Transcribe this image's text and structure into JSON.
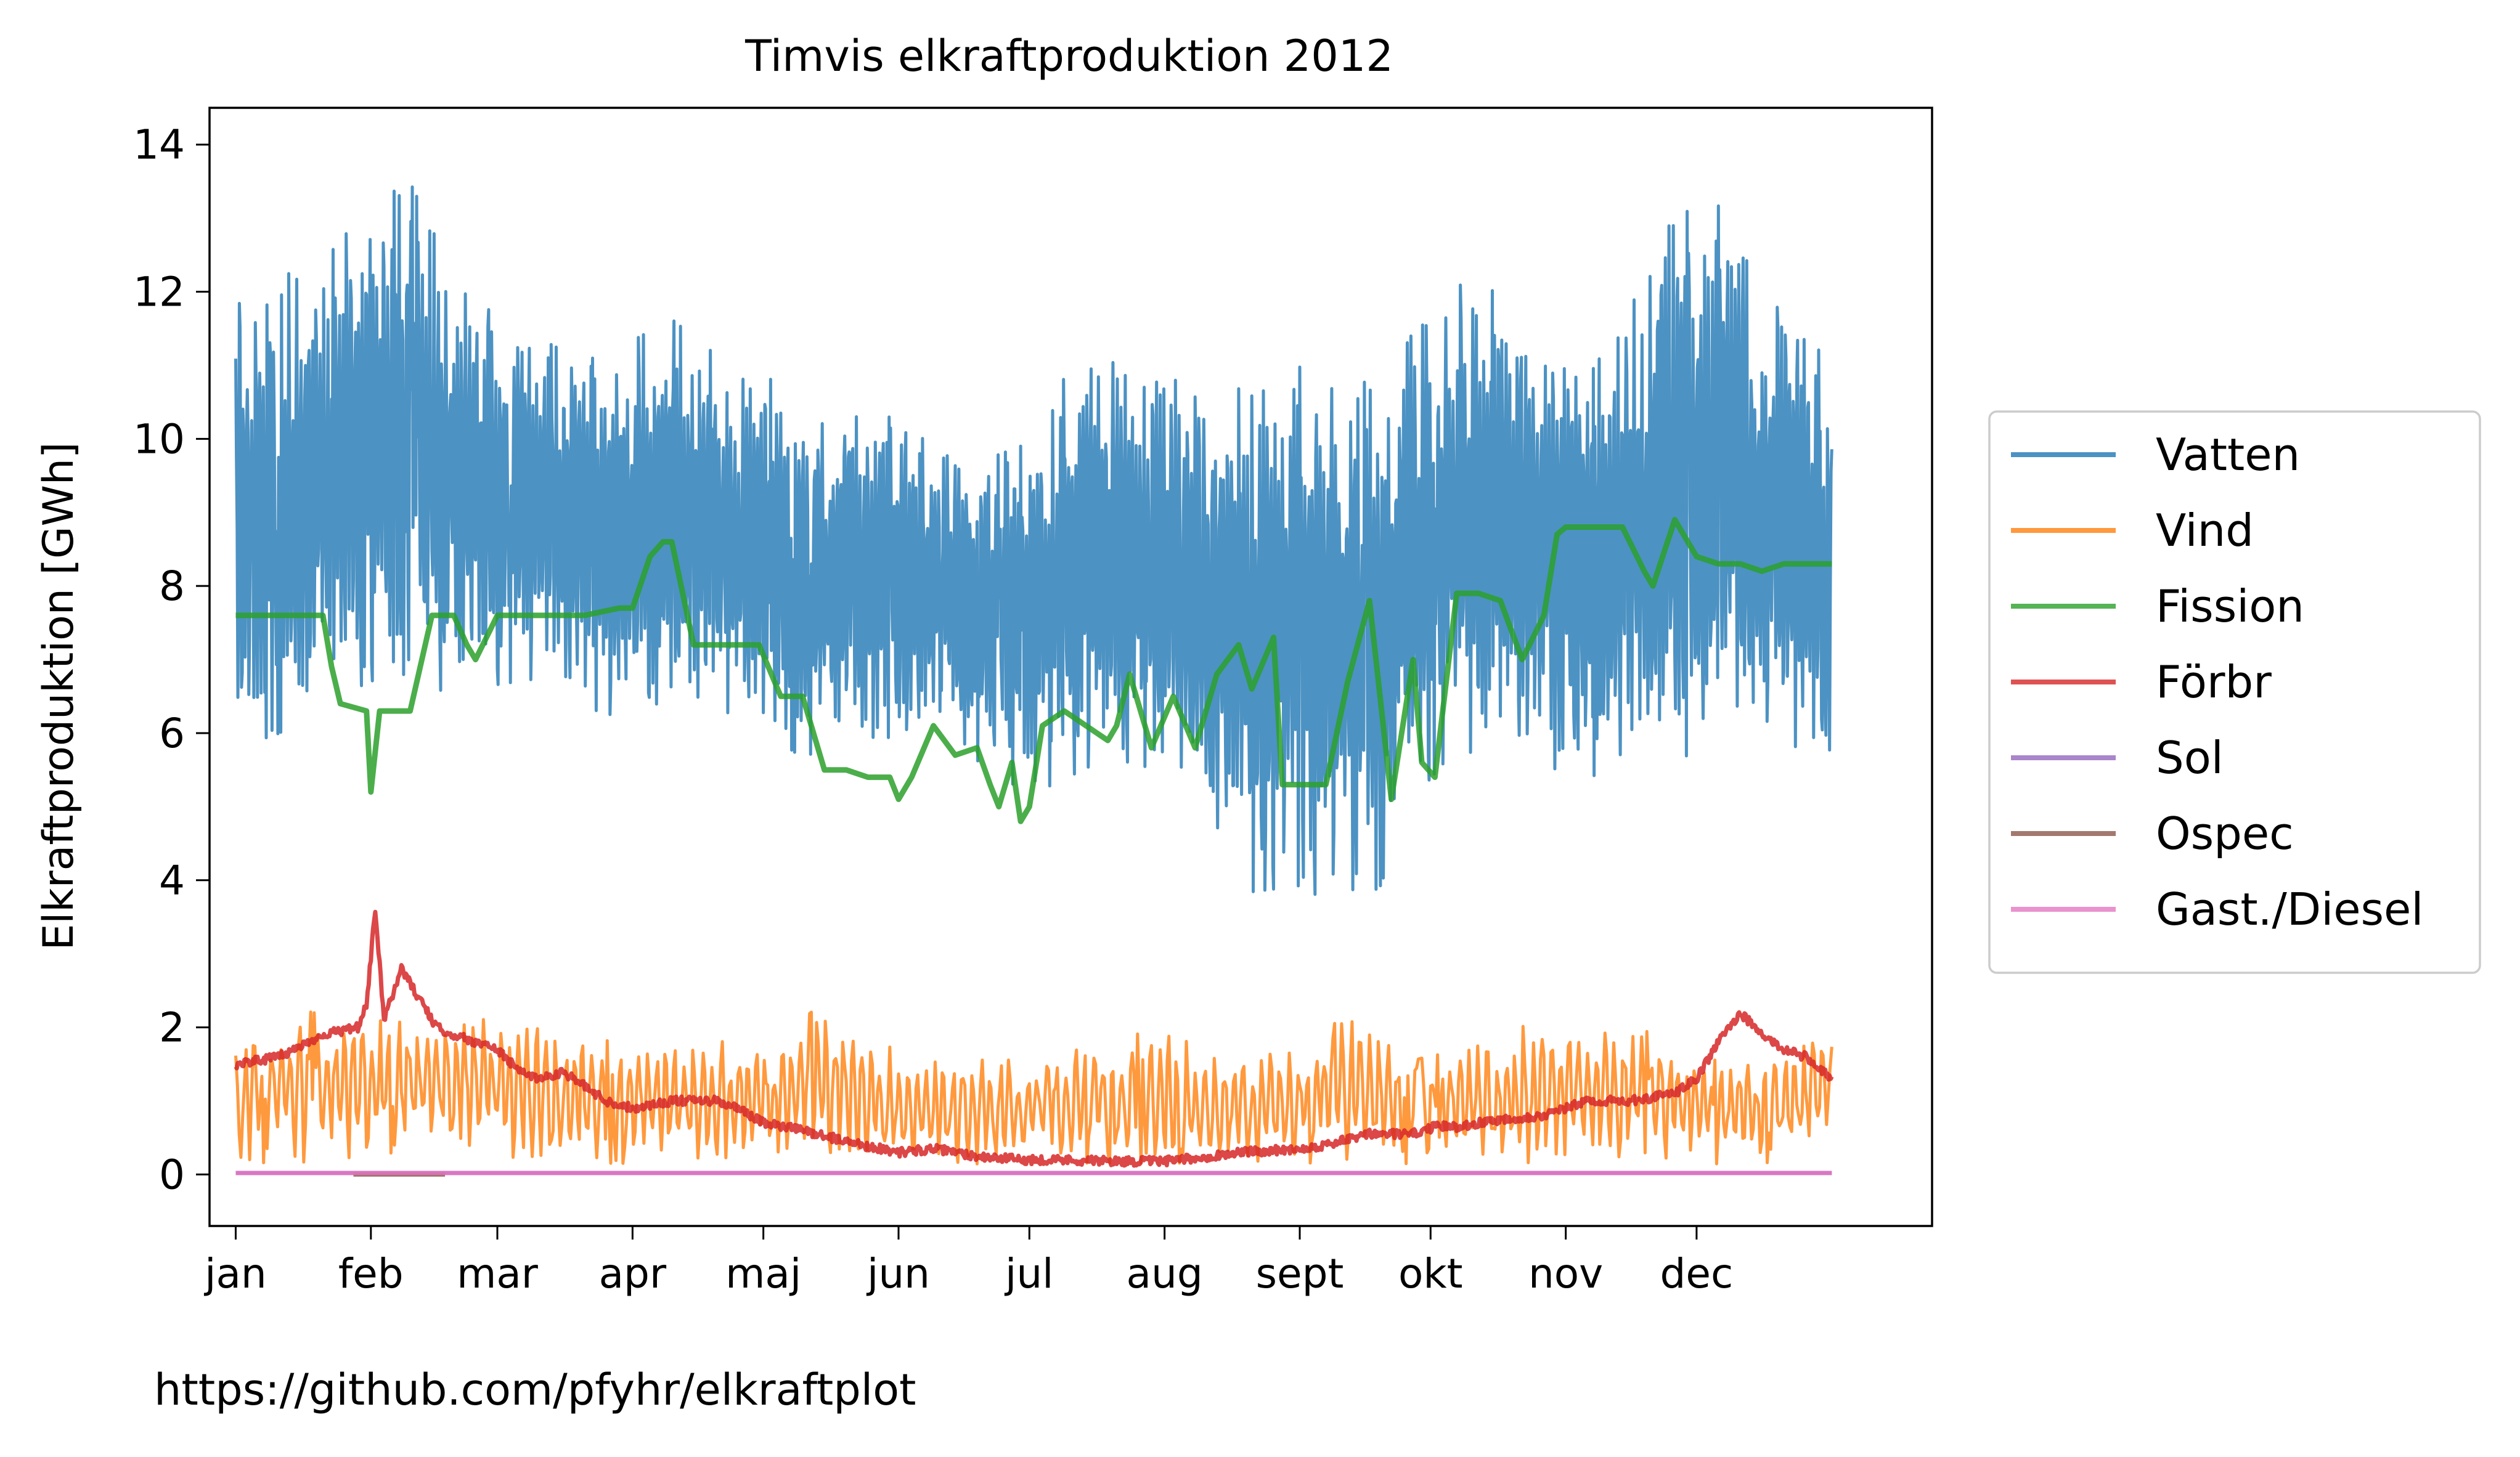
{
  "chart_data": {
    "type": "line",
    "title": "Timvis elkraftproduktion 2012",
    "ylabel": "Elkraftproduktion [GWh]",
    "xlabel": "",
    "ylim": [
      -0.7,
      14.5
    ],
    "yticks": [
      0,
      2,
      4,
      6,
      8,
      10,
      12,
      14
    ],
    "xlim_day": [
      -6,
      389
    ],
    "month_ticks": [
      {
        "label": "jan",
        "day": 0
      },
      {
        "label": "feb",
        "day": 31
      },
      {
        "label": "mar",
        "day": 60
      },
      {
        "label": "apr",
        "day": 91
      },
      {
        "label": "maj",
        "day": 121
      },
      {
        "label": "jun",
        "day": 152
      },
      {
        "label": "jul",
        "day": 182
      },
      {
        "label": "aug",
        "day": 213
      },
      {
        "label": "sept",
        "day": 244
      },
      {
        "label": "okt",
        "day": 274
      },
      {
        "label": "nov",
        "day": 305
      },
      {
        "label": "dec",
        "day": 335
      }
    ],
    "legend_position": "right-outside",
    "grid": false,
    "series": [
      {
        "name": "Vatten",
        "color": "#1f77b4",
        "envelope": {
          "x": [
            0,
            10,
            20,
            31,
            40,
            50,
            60,
            70,
            80,
            91,
            100,
            110,
            121,
            130,
            140,
            152,
            160,
            170,
            182,
            190,
            200,
            213,
            220,
            230,
            244,
            250,
            260,
            270,
            280,
            290,
            300,
            310,
            320,
            330,
            340,
            350,
            360,
            366
          ],
          "upper": [
            12.0,
            12.4,
            12.6,
            13.4,
            13.7,
            12.4,
            11.8,
            11.5,
            11.2,
            11.5,
            11.8,
            11.3,
            11.0,
            10.8,
            10.6,
            10.4,
            10.0,
            9.8,
            10.1,
            11.0,
            11.2,
            11.3,
            11.1,
            10.9,
            11.2,
            11.0,
            11.0,
            11.8,
            12.3,
            12.2,
            11.8,
            11.0,
            12.0,
            13.3,
            13.4,
            12.8,
            12.0,
            10.8
          ],
          "lower": [
            5.6,
            5.8,
            6.2,
            6.5,
            6.6,
            6.3,
            6.5,
            6.6,
            6.2,
            6.0,
            6.0,
            6.2,
            5.9,
            5.5,
            5.8,
            5.8,
            6.3,
            5.5,
            5.0,
            5.2,
            5.5,
            5.3,
            4.5,
            3.6,
            3.7,
            3.5,
            3.3,
            4.9,
            5.6,
            5.4,
            5.3,
            5.2,
            5.5,
            5.4,
            5.6,
            5.4,
            5.3,
            4.7
          ]
        }
      },
      {
        "name": "Vind",
        "color": "#ff7f0e",
        "envelope": {
          "x": [
            0,
            15,
            31,
            45,
            60,
            75,
            91,
            105,
            121,
            135,
            152,
            165,
            182,
            195,
            213,
            228,
            244,
            255,
            270,
            285,
            300,
            312,
            325,
            338,
            350,
            366
          ],
          "upper": [
            1.9,
            2.3,
            2.1,
            2.4,
            2.1,
            2.0,
            1.8,
            1.9,
            1.8,
            2.4,
            1.7,
            1.6,
            1.6,
            1.9,
            2.0,
            1.7,
            1.8,
            2.5,
            1.6,
            1.8,
            2.2,
            2.0,
            2.0,
            1.6,
            1.6,
            2.2
          ],
          "lower": [
            0.1,
            0.1,
            0.2,
            0.3,
            0.2,
            0.1,
            0.1,
            0.1,
            0.1,
            0.1,
            0.1,
            0.1,
            0.1,
            0.1,
            0.1,
            0.1,
            0.1,
            0.1,
            0.1,
            0.1,
            0.1,
            0.1,
            0.1,
            0.1,
            0.1,
            0.3
          ]
        }
      },
      {
        "name": "Fission",
        "color": "#2ca02c",
        "x": [
          0,
          10,
          20,
          22,
          24,
          30,
          31,
          33,
          40,
          45,
          50,
          53,
          55,
          60,
          70,
          80,
          88,
          91,
          95,
          98,
          100,
          105,
          110,
          115,
          120,
          125,
          128,
          130,
          135,
          140,
          145,
          150,
          152,
          155,
          160,
          165,
          170,
          173,
          175,
          178,
          180,
          182,
          185,
          190,
          195,
          200,
          202,
          205,
          210,
          215,
          220,
          225,
          230,
          233,
          238,
          240,
          244,
          248,
          250,
          255,
          260,
          265,
          270,
          272,
          275,
          280,
          285,
          290,
          295,
          300,
          303,
          305,
          308,
          312,
          318,
          323,
          325,
          330,
          335,
          340,
          345,
          350,
          355,
          360,
          366
        ],
        "y": [
          7.6,
          7.6,
          7.6,
          6.9,
          6.4,
          6.3,
          5.2,
          6.3,
          6.3,
          7.6,
          7.6,
          7.2,
          7.0,
          7.6,
          7.6,
          7.6,
          7.7,
          7.7,
          8.4,
          8.6,
          8.6,
          7.2,
          7.2,
          7.2,
          7.2,
          6.5,
          6.5,
          6.5,
          5.5,
          5.5,
          5.4,
          5.4,
          5.1,
          5.4,
          6.1,
          5.7,
          5.8,
          5.3,
          5.0,
          5.6,
          4.8,
          5.0,
          6.1,
          6.3,
          6.1,
          5.9,
          6.1,
          6.8,
          5.8,
          6.5,
          5.8,
          6.8,
          7.2,
          6.6,
          7.3,
          5.3,
          5.3,
          5.3,
          5.3,
          6.7,
          7.8,
          5.1,
          7.0,
          5.6,
          5.4,
          7.9,
          7.9,
          7.8,
          7.0,
          7.6,
          8.7,
          8.8,
          8.8,
          8.8,
          8.8,
          8.2,
          8.0,
          8.9,
          8.4,
          8.3,
          8.3,
          8.2,
          8.3,
          8.3,
          8.3
        ]
      },
      {
        "name": "Förbr",
        "color": "#d62728",
        "x": [
          0,
          10,
          20,
          28,
          30,
          32,
          34,
          38,
          42,
          46,
          50,
          60,
          65,
          70,
          75,
          80,
          85,
          91,
          100,
          110,
          115,
          121,
          130,
          140,
          152,
          160,
          170,
          180,
          190,
          200,
          213,
          220,
          230,
          244,
          250,
          260,
          270,
          275,
          280,
          290,
          300,
          305,
          310,
          320,
          330,
          335,
          340,
          345,
          350,
          355,
          360,
          366
        ],
        "y": [
          1.5,
          1.6,
          1.9,
          2.0,
          2.3,
          3.6,
          2.1,
          2.8,
          2.4,
          2.0,
          1.9,
          1.7,
          1.4,
          1.3,
          1.4,
          1.2,
          1.0,
          0.9,
          1.0,
          1.0,
          0.9,
          0.7,
          0.6,
          0.45,
          0.3,
          0.35,
          0.25,
          0.2,
          0.2,
          0.18,
          0.18,
          0.22,
          0.3,
          0.35,
          0.4,
          0.55,
          0.55,
          0.65,
          0.65,
          0.75,
          0.8,
          0.9,
          1.0,
          1.0,
          1.1,
          1.3,
          1.8,
          2.2,
          1.9,
          1.7,
          1.6,
          1.3
        ]
      },
      {
        "name": "Sol",
        "color": "#9467bd",
        "x": [
          0,
          366
        ],
        "y": [
          0.02,
          0.02
        ]
      },
      {
        "name": "Ospec",
        "color": "#8c564b",
        "x": [
          27,
          48
        ],
        "y": [
          0.0,
          0.0
        ]
      },
      {
        "name": "Gast./Diesel",
        "color": "#e377c2",
        "x": [
          0,
          366
        ],
        "y": [
          0.02,
          0.02
        ]
      }
    ]
  },
  "footer": {
    "source_url": "https://github.com/pfyhr/elkraftplot"
  }
}
